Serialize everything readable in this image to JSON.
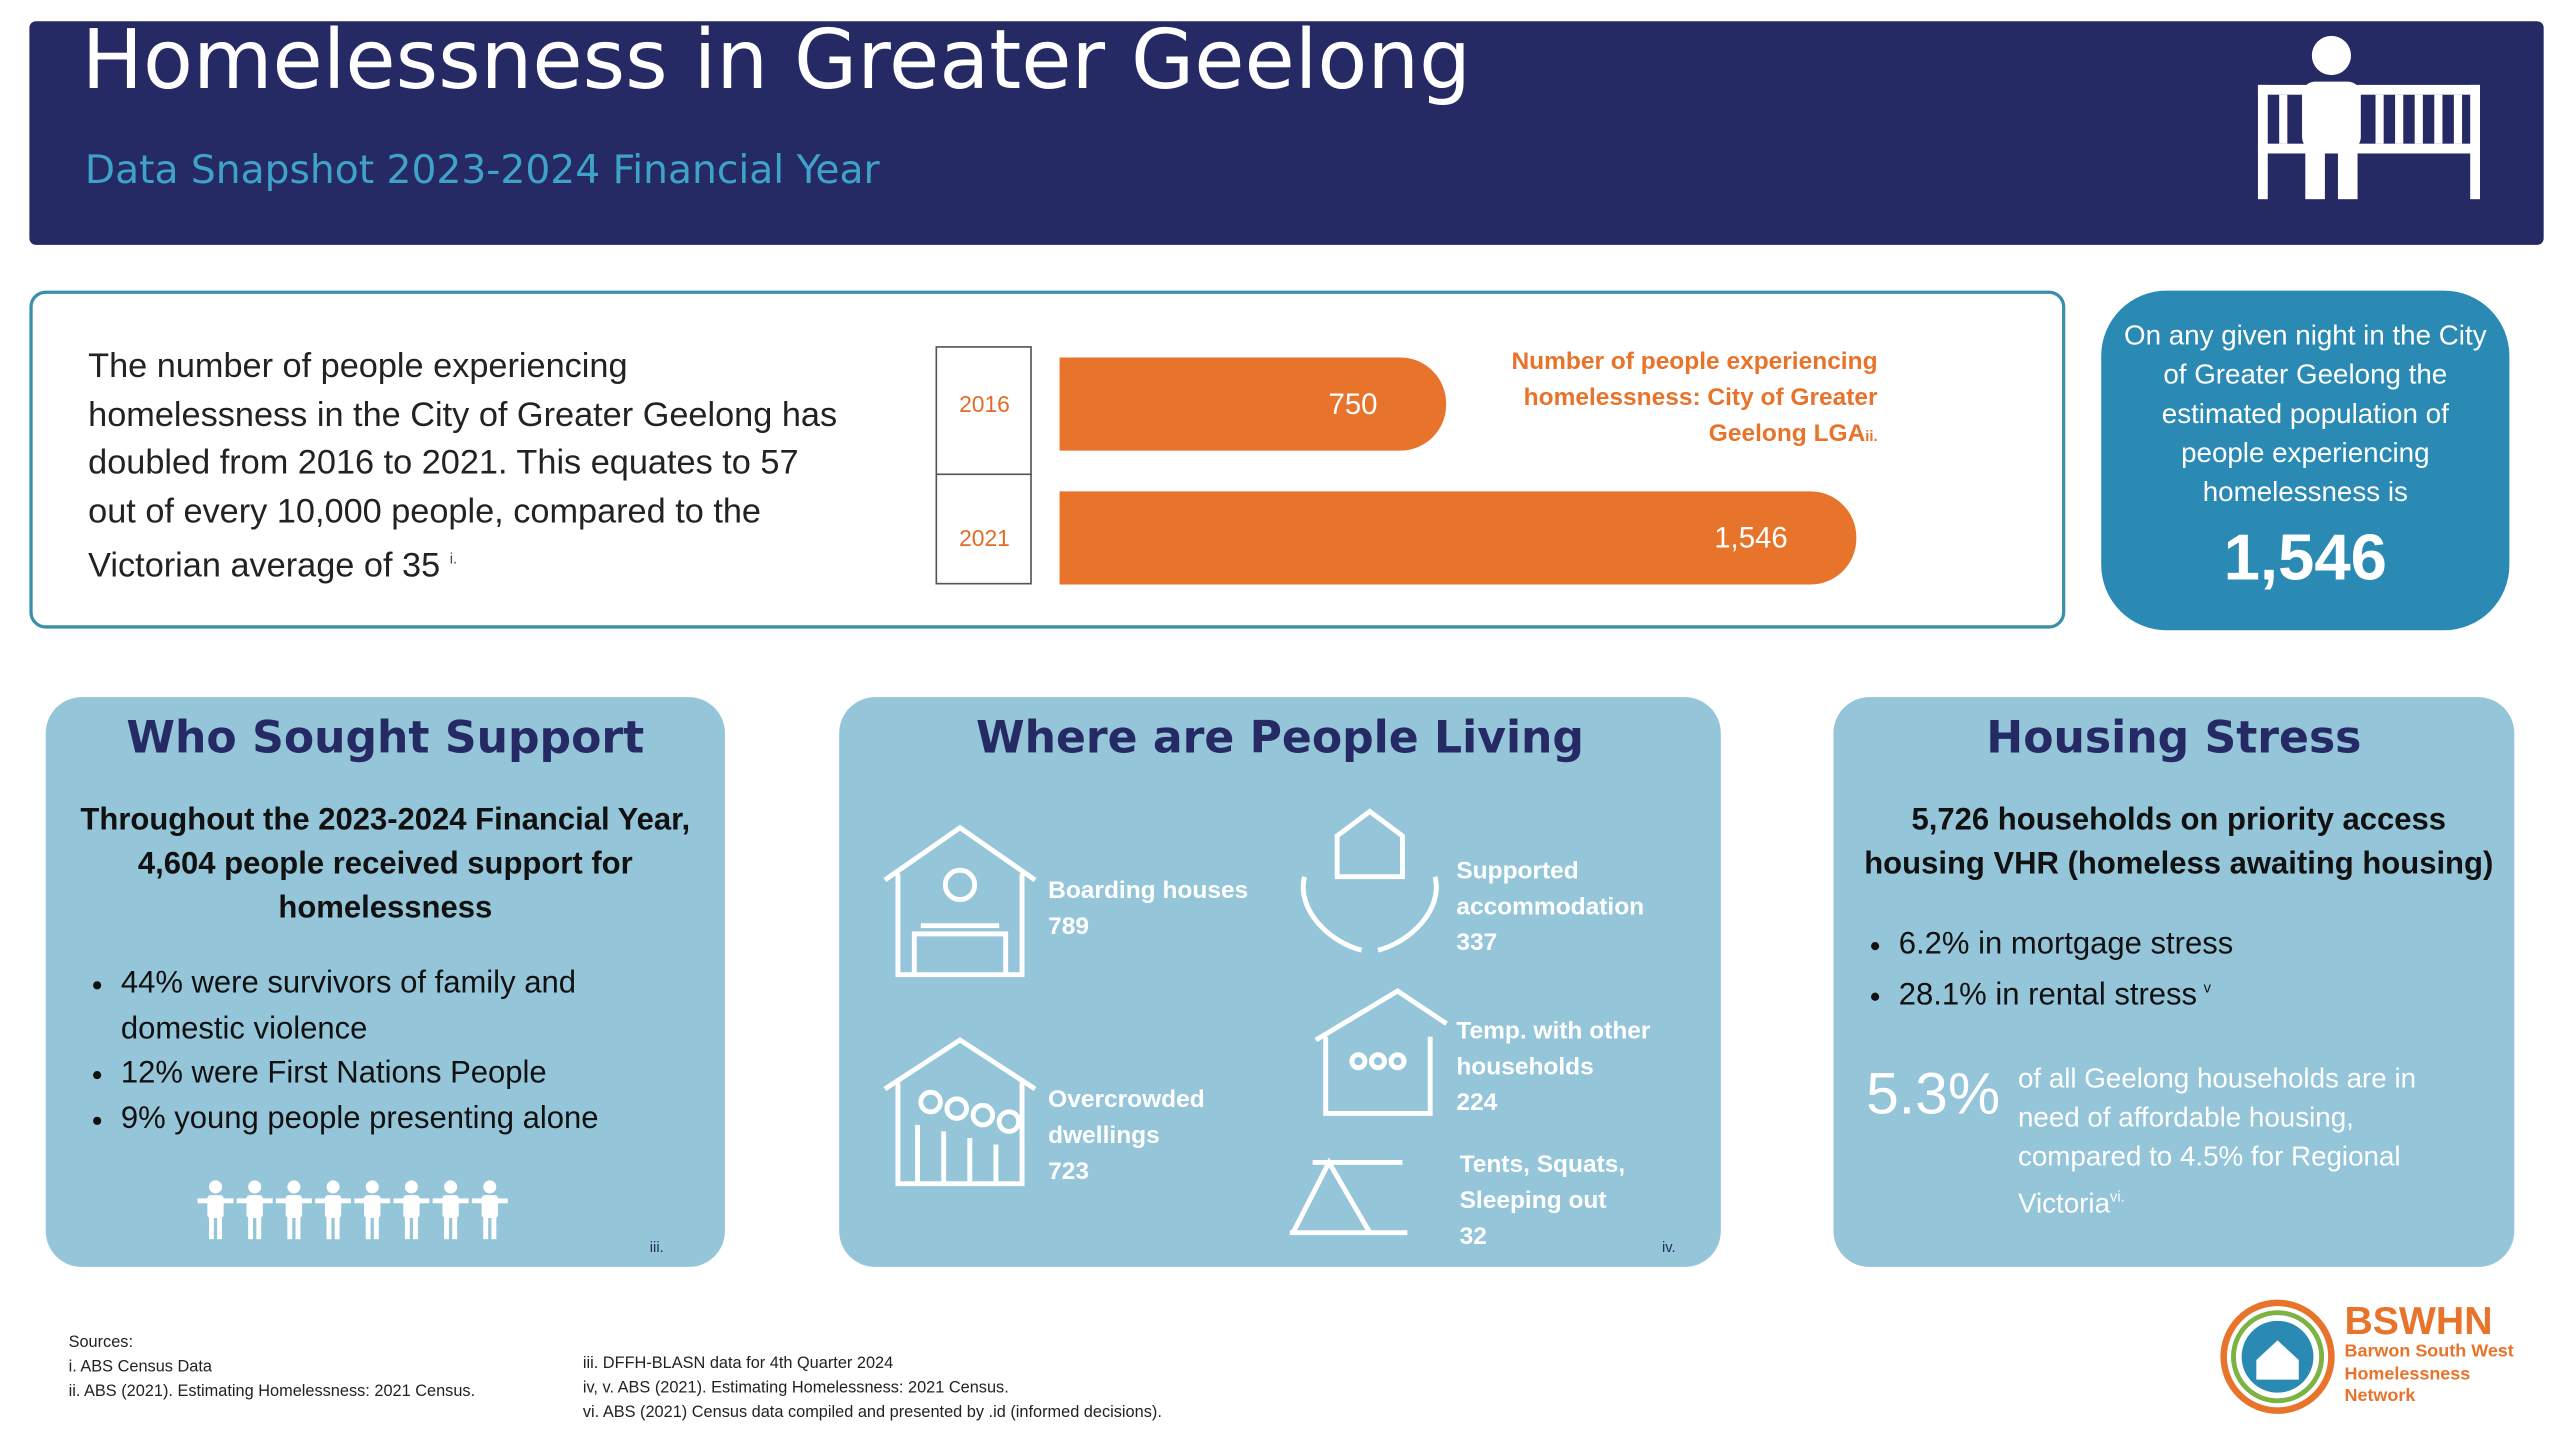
{
  "header": {
    "title": "Homelessness in Greater Geelong",
    "subtitle": "Data Snapshot 2023-2024 Financial Year"
  },
  "intro": {
    "text": "The number of people experiencing homelessness in the City of Greater Geelong has doubled from 2016 to 2021. This equates to 57 out of every 10,000 people, compared to the Victorian average of 35",
    "note": "i."
  },
  "bar_chart": {
    "type": "bar",
    "orientation": "horizontal",
    "title": "Number of people experiencing homelessness: City of Greater Geelong LGA",
    "note": "ii.",
    "categories": [
      "2016",
      "2021"
    ],
    "values": [
      750,
      1546
    ],
    "value_labels": [
      "750",
      "1,546"
    ],
    "color": "#e8732a"
  },
  "night_card": {
    "text": "On any given night in the City of Greater Geelong the estimated population of people experiencing homelessness is",
    "value": "1,546"
  },
  "who": {
    "title": "Who Sought Support",
    "lead": "Throughout the 2023-2024 Financial Year, 4,604 people received support for homelessness",
    "bullets": [
      "44% were survivors of family and domestic violence",
      "12% were First Nations People",
      "9% young people presenting alone"
    ],
    "note": "iii."
  },
  "where": {
    "title": "Where are People Living",
    "items": [
      {
        "label": "Boarding houses",
        "value": "789"
      },
      {
        "label": "Overcrowded dwellings",
        "value": "723"
      },
      {
        "label": "Supported accommodation",
        "value": "337"
      },
      {
        "label": "Temp. with other households",
        "value": "224"
      },
      {
        "label": "Tents, Squats, Sleeping out",
        "value": "32"
      }
    ],
    "note": "iv."
  },
  "stress": {
    "title": "Housing Stress",
    "lead": "5,726 households on priority access housing VHR (homeless awaiting housing)",
    "bullets": [
      "6.2% in mortgage stress",
      "28.1% in rental stress"
    ],
    "bullet_note": "v",
    "big": "5.3%",
    "text": "of all Geelong households are in need of affordable housing, compared to 4.5% for Regional Victoria",
    "note": "vi."
  },
  "sources": {
    "heading": "Sources:",
    "left": [
      "i. ABS Census Data",
      "ii. ABS (2021). Estimating Homelessness: 2021 Census."
    ],
    "right": [
      "iii. DFFH-BLASN data for 4th Quarter 2024",
      "iv, v. ABS (2021). Estimating Homelessness: 2021 Census.",
      "vi. ABS (2021) Census data compiled and presented by .id (informed decisions)."
    ]
  },
  "logo": {
    "name": "BSWHN",
    "full": "Barwon South West Homelessness Network"
  }
}
